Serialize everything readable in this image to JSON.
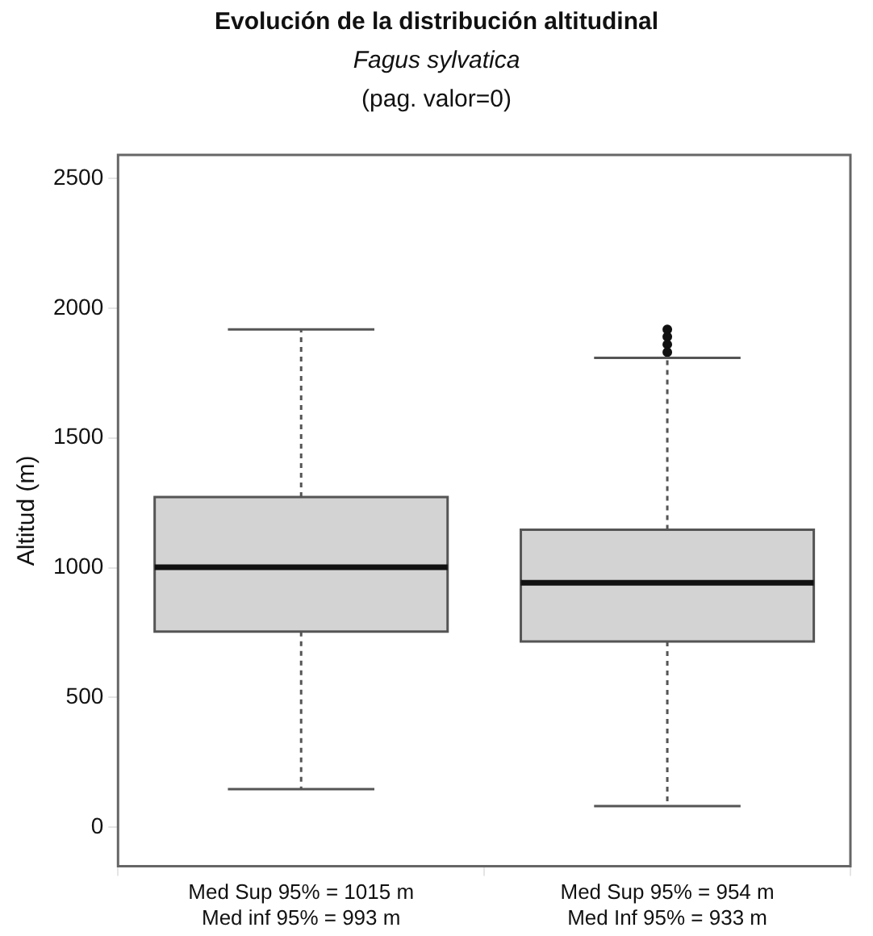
{
  "chart_data": {
    "type": "box",
    "title": "Evolución de la distribución altitudinal",
    "subtitle": "Fagus sylvatica",
    "ylabel": "Altitud (m)",
    "annotations": [
      "(pag. valor=0)"
    ],
    "categories": [
      "Med Sup 95% = 1015 m\nMed inf 95% = 993 m",
      "Med Sup 95% = 954 m\nMed Inf 95% = 933 m"
    ],
    "boxes": [
      {
        "low": 147,
        "q1": 754,
        "median": 1002,
        "q3": 1272,
        "high": 1918
      },
      {
        "low": 82,
        "q1": 716,
        "median": 942,
        "q3": 1146,
        "high": 1808,
        "outliers": [
          1830,
          1860,
          1890,
          1918
        ]
      }
    ],
    "color": "#d3d3d3",
    "ylim": [
      -150,
      2590
    ],
    "yticks": [
      0,
      500,
      1000,
      1500,
      2000,
      2500
    ],
    "grid": false,
    "legend": false
  }
}
